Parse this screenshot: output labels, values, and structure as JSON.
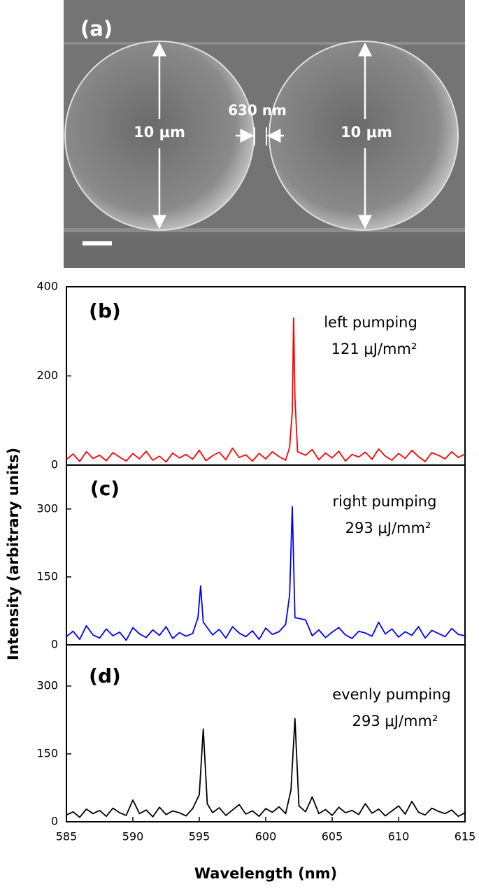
{
  "image_panel": {
    "label": "(a)",
    "left_diameter": "10 μm",
    "right_diameter": "10 μm",
    "gap": "630 nm"
  },
  "chart_data": [
    {
      "type": "line",
      "annotations": [
        "(b)",
        "left pumping",
        "121 μJ/mm²"
      ],
      "x": [
        585,
        585.5,
        586,
        586.5,
        587,
        587.5,
        588,
        588.5,
        589,
        589.5,
        590,
        590.5,
        591,
        591.5,
        592,
        592.5,
        593,
        593.5,
        594,
        594.5,
        595,
        595.5,
        596,
        596.5,
        597,
        597.5,
        598,
        598.5,
        599,
        599.5,
        600,
        600.5,
        601,
        601.5,
        601.8,
        602.0,
        602.1,
        602.2,
        602.4,
        603,
        603.5,
        604,
        604.5,
        605,
        605.5,
        606,
        606.5,
        607,
        607.5,
        608,
        608.5,
        609,
        609.5,
        610,
        610.5,
        611,
        611.5,
        612,
        612.5,
        613,
        613.5,
        614,
        614.5,
        615
      ],
      "series": [
        {
          "color": "#ff0000",
          "values": [
            12,
            25,
            8,
            30,
            15,
            22,
            10,
            28,
            18,
            9,
            26,
            14,
            31,
            11,
            20,
            7,
            27,
            16,
            24,
            13,
            33,
            10,
            21,
            29,
            12,
            38,
            17,
            23,
            9,
            26,
            14,
            30,
            19,
            11,
            40,
            120,
            330,
            150,
            30,
            22,
            35,
            12,
            27,
            16,
            31,
            9,
            24,
            18,
            29,
            13,
            36,
            20,
            11,
            26,
            15,
            33,
            19,
            8,
            28,
            22,
            14,
            30,
            17,
            25
          ]
        }
      ],
      "xlim": [
        585,
        615
      ],
      "ylim": [
        0,
        400
      ],
      "yticks": [
        0,
        200,
        400
      ]
    },
    {
      "type": "line",
      "annotations": [
        "(c)",
        "right pumping",
        "293 μJ/mm²"
      ],
      "ylabel": "Intensity (arbitrary units)",
      "x": [
        585,
        585.5,
        586,
        586.5,
        587,
        587.5,
        588,
        588.5,
        589,
        589.5,
        590,
        590.5,
        591,
        591.5,
        592,
        592.5,
        593,
        593.5,
        594,
        594.5,
        594.9,
        595.1,
        595.3,
        596,
        596.5,
        597,
        597.5,
        598,
        598.5,
        599,
        599.5,
        600,
        600.5,
        601,
        601.5,
        601.8,
        602.0,
        602.2,
        603,
        603.5,
        604,
        604.5,
        605,
        605.5,
        606,
        606.5,
        607,
        607.5,
        608,
        608.5,
        609,
        609.5,
        610,
        610.5,
        611,
        611.5,
        612,
        612.5,
        613,
        613.5,
        614,
        614.5,
        615
      ],
      "series": [
        {
          "color": "#0000ff",
          "values": [
            18,
            30,
            12,
            42,
            22,
            15,
            35,
            20,
            28,
            10,
            38,
            24,
            16,
            33,
            21,
            40,
            14,
            27,
            19,
            25,
            60,
            130,
            50,
            22,
            34,
            15,
            40,
            26,
            18,
            31,
            12,
            37,
            23,
            29,
            45,
            110,
            305,
            60,
            55,
            20,
            33,
            16,
            28,
            38,
            22,
            14,
            30,
            26,
            19,
            50,
            24,
            35,
            17,
            29,
            21,
            40,
            15,
            32,
            25,
            18,
            36,
            23,
            20
          ]
        }
      ],
      "xlim": [
        585,
        615
      ],
      "ylim": [
        0,
        397
      ],
      "yticks": [
        0,
        150,
        300
      ]
    },
    {
      "type": "line",
      "annotations": [
        "(d)",
        "evenly pumping",
        "293 μJ/mm²"
      ],
      "xlabel": "Wavelength (nm)",
      "x": [
        585,
        585.5,
        586,
        586.5,
        587,
        587.5,
        588,
        588.5,
        589,
        589.5,
        590,
        590.5,
        591,
        591.5,
        592,
        592.5,
        593,
        593.5,
        594,
        594.5,
        595.0,
        595.3,
        595.6,
        596,
        596.5,
        597,
        597.5,
        598,
        598.5,
        599,
        599.5,
        600,
        600.5,
        601,
        601.5,
        601.9,
        602.2,
        602.5,
        603,
        603.5,
        604,
        604.5,
        605,
        605.5,
        606,
        606.5,
        607,
        607.5,
        608,
        608.5,
        609,
        609.5,
        610,
        610.5,
        611,
        611.5,
        612,
        612.5,
        613,
        613.5,
        614,
        614.5,
        615
      ],
      "series": [
        {
          "color": "#000000",
          "values": [
            15,
            22,
            10,
            28,
            18,
            25,
            12,
            30,
            20,
            14,
            48,
            18,
            26,
            11,
            32,
            16,
            24,
            20,
            13,
            29,
            60,
            205,
            40,
            20,
            31,
            14,
            26,
            38,
            17,
            24,
            12,
            29,
            21,
            33,
            18,
            70,
            228,
            35,
            22,
            55,
            18,
            27,
            14,
            32,
            20,
            25,
            16,
            40,
            19,
            28,
            13,
            24,
            35,
            17,
            45,
            21,
            15,
            30,
            23,
            18,
            26,
            12,
            20
          ]
        }
      ],
      "xlim": [
        585,
        615
      ],
      "ylim": [
        0,
        391
      ],
      "yticks": [
        0,
        150,
        300
      ],
      "xticks": [
        585,
        590,
        595,
        600,
        605,
        610,
        615
      ]
    }
  ]
}
